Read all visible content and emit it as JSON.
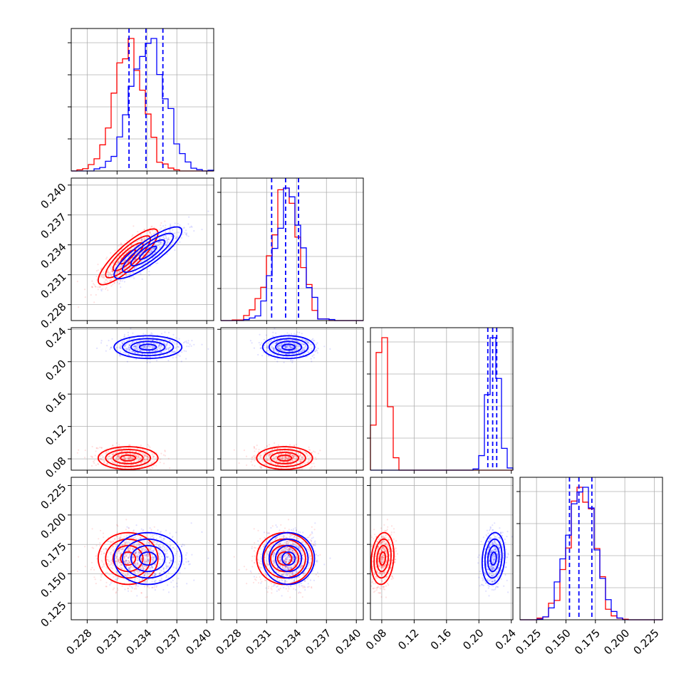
{
  "chart_data": {
    "type": "scatter",
    "title": "",
    "grid": true,
    "series_colors": {
      "blue": "#0000ff",
      "red": "#ff0000"
    },
    "params": [
      {
        "ticks": [
          0.228,
          0.231,
          0.234,
          0.237,
          0.24
        ],
        "tick_labels": [
          "0.228",
          "0.231",
          "0.234",
          "0.237",
          "0.240"
        ],
        "range": [
          0.2264,
          0.2407
        ],
        "mean_blue": 0.2341,
        "sd_blue": 0.0017,
        "mean_red": 0.2321,
        "sd_red": 0.0015,
        "quantiles": [
          0.2322,
          0.2339,
          0.2356
        ]
      },
      {
        "ticks": [
          0.228,
          0.231,
          0.234,
          0.237,
          0.24
        ],
        "tick_labels": [
          "0.228",
          "0.231",
          "0.234",
          "0.237",
          "0.240"
        ],
        "range": [
          0.2264,
          0.2407
        ],
        "mean_blue": 0.2332,
        "sd_blue": 0.0013,
        "mean_red": 0.2328,
        "sd_red": 0.0014,
        "quantiles": [
          0.2315,
          0.2329,
          0.2342
        ]
      },
      {
        "ticks": [
          0.08,
          0.12,
          0.16,
          0.2,
          0.24
        ],
        "tick_labels": [
          "0.08",
          "0.12",
          "0.16",
          "0.20",
          "0.24"
        ],
        "range": [
          0.066,
          0.242
        ],
        "mean_blue": 0.218,
        "sd_blue": 0.007,
        "mean_red": 0.081,
        "sd_red": 0.007,
        "quantiles": [
          0.211,
          0.217,
          0.222
        ]
      },
      {
        "ticks": [
          0.125,
          0.15,
          0.175,
          0.2,
          0.225
        ],
        "tick_labels": [
          "0.125",
          "0.150",
          "0.175",
          "0.200",
          "0.225"
        ],
        "range": [
          0.111,
          0.232
        ],
        "mean_blue": 0.163,
        "sd_blue": 0.011,
        "mean_red": 0.163,
        "sd_red": 0.011,
        "quantiles": [
          0.153,
          0.161,
          0.172
        ]
      }
    ],
    "correlations_blue": {
      "0-1": 0.85,
      "0-2": 0.0,
      "0-3": 0.0,
      "1-2": 0.0,
      "1-3": 0.0,
      "2-3": 0.15
    },
    "correlations_red": {
      "0-1": 0.85,
      "0-2": 0.0,
      "0-3": 0.0,
      "1-2": 0.0,
      "1-3": 0.0,
      "2-3": 0.15
    }
  }
}
